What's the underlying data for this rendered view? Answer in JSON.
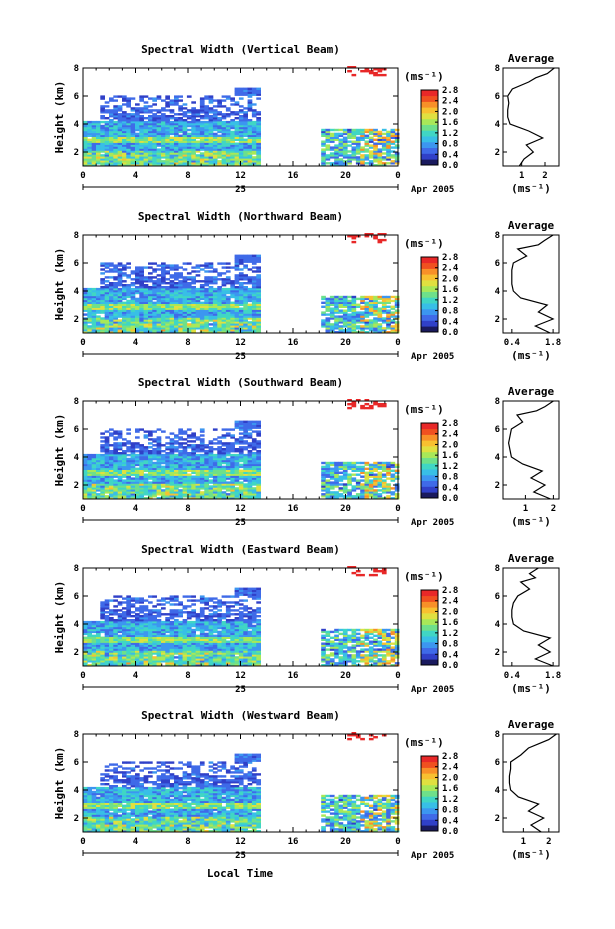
{
  "figure": {
    "x_axis_label": "Local Time"
  },
  "colorbar_colors": [
    "#1a1a5e",
    "#3040c8",
    "#3f6ae8",
    "#3c96f0",
    "#38bfe6",
    "#40d6c4",
    "#6ee08a",
    "#a8e858",
    "#e0e040",
    "#f8c030",
    "#f89028",
    "#f05020",
    "#e82828"
  ],
  "chart_data": [
    {
      "type": "heatmap",
      "title": "Spectral Width (Vertical Beam)",
      "xlabel": "",
      "xlim": [
        0,
        24
      ],
      "x_ticks": [
        "0",
        "4",
        "8",
        "12",
        "16",
        "20",
        "0"
      ],
      "date_label": "25",
      "month_label": "Apr 2005",
      "ylabel": "Height (km)",
      "ylim": [
        1,
        8
      ],
      "y_ticks": [
        "2",
        "4",
        "6",
        "8"
      ],
      "colorbar": {
        "unit": "(ms⁻¹)",
        "ticks": [
          "0.0",
          "0.4",
          "0.8",
          "1.2",
          "1.6",
          "2.0",
          "2.4",
          "2.8"
        ],
        "range": [
          0,
          2.8
        ]
      },
      "average": {
        "title": "Average",
        "xlabel": "(ms⁻¹)",
        "x_ticks": [
          "1",
          "2"
        ],
        "x_tick_values": [
          1,
          2
        ],
        "xlim": [
          0.2,
          2.6
        ],
        "profile": [
          [
            1,
            0.9
          ],
          [
            1.5,
            1.1
          ],
          [
            2,
            1.5
          ],
          [
            2.5,
            1.2
          ],
          [
            3,
            1.9
          ],
          [
            3.5,
            1.3
          ],
          [
            4,
            0.5
          ],
          [
            4.5,
            0.4
          ],
          [
            5,
            0.4
          ],
          [
            5.5,
            0.45
          ],
          [
            6,
            0.4
          ],
          [
            6.5,
            0.6
          ],
          [
            7,
            1.3
          ],
          [
            7.3,
            1.6
          ],
          [
            7.6,
            2.1
          ],
          [
            8,
            2.4
          ]
        ]
      }
    },
    {
      "type": "heatmap",
      "title": "Spectral Width (Northward Beam)",
      "xlabel": "",
      "xlim": [
        0,
        24
      ],
      "x_ticks": [
        "0",
        "4",
        "8",
        "12",
        "16",
        "20",
        "0"
      ],
      "date_label": "25",
      "month_label": "Apr 2005",
      "ylabel": "Height (km)",
      "ylim": [
        1,
        8
      ],
      "y_ticks": [
        "2",
        "4",
        "6",
        "8"
      ],
      "colorbar": {
        "unit": "(ms⁻¹)",
        "ticks": [
          "0.0",
          "0.4",
          "0.8",
          "1.2",
          "1.6",
          "2.0",
          "2.4",
          "2.8"
        ],
        "range": [
          0,
          2.8
        ]
      },
      "average": {
        "title": "Average",
        "xlabel": "(ms⁻¹)",
        "x_ticks": [
          "0.4",
          "1.8"
        ],
        "x_tick_values": [
          0.4,
          1.8
        ],
        "xlim": [
          0.1,
          2.0
        ],
        "profile": [
          [
            1,
            1.7
          ],
          [
            1.5,
            1.2
          ],
          [
            2,
            1.8
          ],
          [
            2.5,
            1.3
          ],
          [
            3,
            1.6
          ],
          [
            3.5,
            0.7
          ],
          [
            4,
            0.45
          ],
          [
            4.5,
            0.4
          ],
          [
            5,
            0.4
          ],
          [
            5.5,
            0.4
          ],
          [
            6,
            0.45
          ],
          [
            6.5,
            0.9
          ],
          [
            7,
            0.6
          ],
          [
            7.3,
            1.3
          ],
          [
            7.6,
            1.5
          ],
          [
            8,
            1.8
          ]
        ]
      }
    },
    {
      "type": "heatmap",
      "title": "Spectral Width (Southward Beam)",
      "xlabel": "",
      "xlim": [
        0,
        24
      ],
      "x_ticks": [
        "0",
        "4",
        "8",
        "12",
        "16",
        "20",
        "0"
      ],
      "date_label": "25",
      "month_label": "Apr 2005",
      "ylabel": "Height (km)",
      "ylim": [
        1,
        8
      ],
      "y_ticks": [
        "2",
        "4",
        "6",
        "8"
      ],
      "colorbar": {
        "unit": "(ms⁻¹)",
        "ticks": [
          "0.0",
          "0.4",
          "0.8",
          "1.2",
          "1.6",
          "2.0",
          "2.4",
          "2.8"
        ],
        "range": [
          0,
          2.8
        ]
      },
      "average": {
        "title": "Average",
        "xlabel": "(ms⁻¹)",
        "x_ticks": [
          "1",
          "2"
        ],
        "x_tick_values": [
          1,
          2
        ],
        "xlim": [
          0.2,
          2.2
        ],
        "profile": [
          [
            1,
            1.9
          ],
          [
            1.5,
            1.3
          ],
          [
            2,
            1.7
          ],
          [
            2.5,
            1.2
          ],
          [
            3,
            1.6
          ],
          [
            3.5,
            0.9
          ],
          [
            4,
            0.5
          ],
          [
            4.5,
            0.45
          ],
          [
            5,
            0.4
          ],
          [
            5.5,
            0.45
          ],
          [
            6,
            0.5
          ],
          [
            6.5,
            0.9
          ],
          [
            7,
            0.7
          ],
          [
            7.3,
            1.4
          ],
          [
            7.6,
            1.7
          ],
          [
            8,
            2.0
          ]
        ]
      }
    },
    {
      "type": "heatmap",
      "title": "Spectral Width (Eastward Beam)",
      "xlabel": "",
      "xlim": [
        0,
        24
      ],
      "x_ticks": [
        "0",
        "4",
        "8",
        "12",
        "16",
        "20",
        "0"
      ],
      "date_label": "25",
      "month_label": "Apr 2005",
      "ylabel": "Height (km)",
      "ylim": [
        1,
        8
      ],
      "y_ticks": [
        "2",
        "4",
        "6",
        "8"
      ],
      "colorbar": {
        "unit": "(ms⁻¹)",
        "ticks": [
          "0.0",
          "0.4",
          "0.8",
          "1.2",
          "1.6",
          "2.0",
          "2.4",
          "2.8"
        ],
        "range": [
          0,
          2.8
        ]
      },
      "average": {
        "title": "Average",
        "xlabel": "(ms⁻¹)",
        "x_ticks": [
          "0.4",
          "1.8"
        ],
        "x_tick_values": [
          0.4,
          1.8
        ],
        "xlim": [
          0.1,
          2.0
        ],
        "profile": [
          [
            1,
            1.8
          ],
          [
            1.5,
            1.2
          ],
          [
            2,
            1.7
          ],
          [
            2.5,
            1.3
          ],
          [
            3,
            1.7
          ],
          [
            3.5,
            0.8
          ],
          [
            4,
            0.45
          ],
          [
            4.5,
            0.4
          ],
          [
            5,
            0.4
          ],
          [
            5.5,
            0.45
          ],
          [
            6,
            0.6
          ],
          [
            6.5,
            1.0
          ],
          [
            7,
            0.7
          ],
          [
            7.3,
            1.2
          ],
          [
            7.6,
            1.0
          ],
          [
            8,
            1.3
          ]
        ]
      }
    },
    {
      "type": "heatmap",
      "title": "Spectral Width (Westward Beam)",
      "xlabel": "Local Time",
      "xlim": [
        0,
        24
      ],
      "x_ticks": [
        "0",
        "4",
        "8",
        "12",
        "16",
        "20",
        "0"
      ],
      "date_label": "25",
      "month_label": "Apr 2005",
      "ylabel": "Height (km)",
      "ylim": [
        1,
        8
      ],
      "y_ticks": [
        "2",
        "4",
        "6",
        "8"
      ],
      "colorbar": {
        "unit": "(ms⁻¹)",
        "ticks": [
          "0.0",
          "0.4",
          "0.8",
          "1.2",
          "1.6",
          "2.0",
          "2.4",
          "2.8"
        ],
        "range": [
          0,
          2.8
        ]
      },
      "average": {
        "title": "Average",
        "xlabel": "(ms⁻¹)",
        "x_ticks": [
          "1",
          "2"
        ],
        "x_tick_values": [
          1,
          2
        ],
        "xlim": [
          0.2,
          2.4
        ],
        "profile": [
          [
            1,
            1.7
          ],
          [
            1.5,
            1.3
          ],
          [
            2,
            1.8
          ],
          [
            2.5,
            1.2
          ],
          [
            3,
            1.6
          ],
          [
            3.5,
            0.8
          ],
          [
            4,
            0.5
          ],
          [
            4.5,
            0.45
          ],
          [
            5,
            0.45
          ],
          [
            5.5,
            0.5
          ],
          [
            6,
            0.5
          ],
          [
            6.5,
            0.9
          ],
          [
            7,
            1.2
          ],
          [
            7.3,
            1.6
          ],
          [
            7.6,
            2.0
          ],
          [
            8,
            2.3
          ]
        ]
      }
    }
  ]
}
